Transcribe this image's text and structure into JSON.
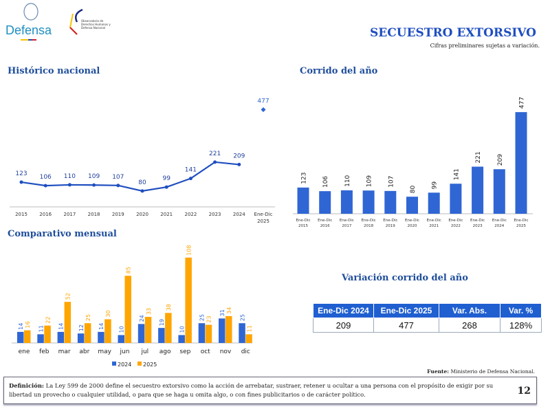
{
  "header": {
    "logo_text": "Defensa",
    "logo2_text": "Observatorio de Derechos Humanos y Defensa Nacional",
    "title": "SECUESTRO EXTORSIVO",
    "subtitle": "Cifras preliminares sujetas a variación."
  },
  "sections": {
    "historico": "Histórico nacional",
    "corrido": "Corrido del año",
    "mensual": "Comparativo mensual",
    "variacion": "Variación corrido del año"
  },
  "colors": {
    "blue": "#2f66d4",
    "orange": "#ffa500",
    "title": "#1f4e9c"
  },
  "chart_data": [
    {
      "type": "line",
      "title": "Histórico nacional",
      "categories": [
        "2015",
        "2016",
        "2017",
        "2018",
        "2019",
        "2020",
        "2021",
        "2022",
        "2023",
        "2024",
        "Ene-Dic 2025"
      ],
      "values": [
        123,
        106,
        110,
        109,
        107,
        80,
        99,
        141,
        221,
        209,
        477
      ],
      "note": "last point shown as separate marker"
    },
    {
      "type": "bar",
      "title": "Corrido del año",
      "categories": [
        "Ene-Dic 2015",
        "Ene-Dic 2016",
        "Ene-Dic 2017",
        "Ene-Dic 2018",
        "Ene-Dic 2019",
        "Ene-Dic 2020",
        "Ene-Dic 2021",
        "Ene-Dic 2022",
        "Ene-Dic 2023",
        "Ene-Dic 2024",
        "Ene-Dic 2025"
      ],
      "values": [
        123,
        106,
        110,
        109,
        107,
        80,
        99,
        141,
        221,
        209,
        477
      ]
    },
    {
      "type": "bar",
      "title": "Comparativo mensual",
      "categories": [
        "ene",
        "feb",
        "mar",
        "abr",
        "may",
        "jun",
        "jul",
        "ago",
        "sep",
        "oct",
        "nov",
        "dic"
      ],
      "series": [
        {
          "name": "2024",
          "values": [
            14,
            11,
            14,
            12,
            14,
            10,
            24,
            19,
            10,
            25,
            31,
            25
          ]
        },
        {
          "name": "2025",
          "values": [
            16,
            22,
            52,
            25,
            30,
            85,
            33,
            38,
            108,
            23,
            34,
            11
          ]
        }
      ],
      "legend": "bottom"
    }
  ],
  "table": {
    "headers": [
      "Ene-Dic 2024",
      "Ene-Dic 2025",
      "Var. Abs.",
      "Var. %"
    ],
    "row": [
      "209",
      "477",
      "268",
      "128%"
    ]
  },
  "footer": {
    "fuente_label": "Fuente:",
    "fuente": "Ministerio de Defensa Nacional.",
    "def_label": "Definición:",
    "definition": "La Ley 599 de 2000 define el secuestro extorsivo como la acción de arrebatar, sustraer, retener u ocultar a una persona con el propósito de exigir por su libertad un provecho o cualquier utilidad, o para que se haga u omita algo, o con fines publicitarios o de carácter político.",
    "page": "12"
  }
}
